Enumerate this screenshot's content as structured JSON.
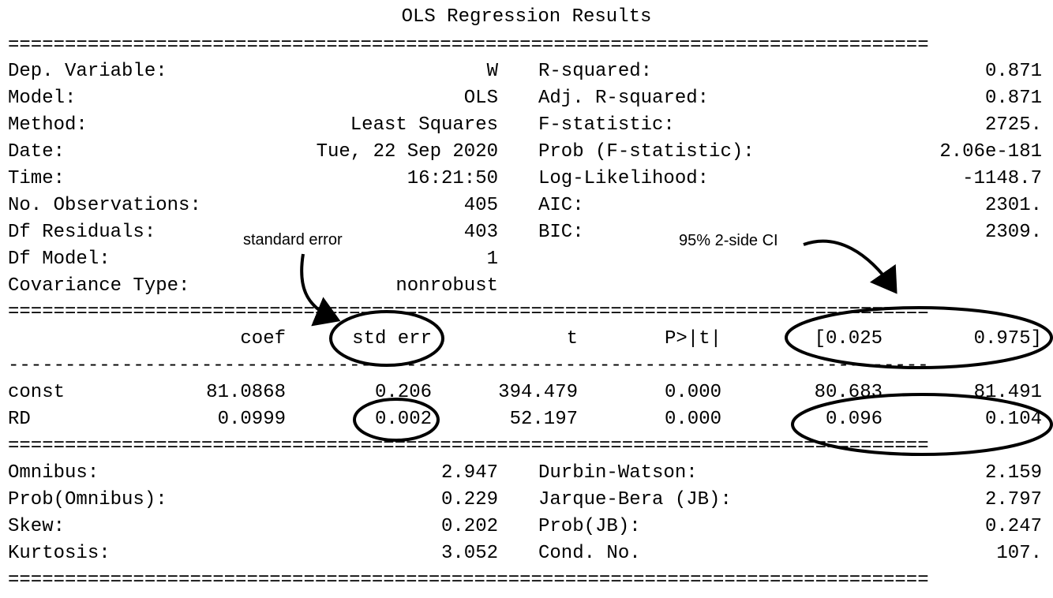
{
  "title": "OLS Regression Results",
  "rule_double": "=================================================================================",
  "rule_single": "---------------------------------------------------------------------------------",
  "top": {
    "left": [
      {
        "label": "Dep. Variable:",
        "value": "W"
      },
      {
        "label": "Model:",
        "value": "OLS"
      },
      {
        "label": "Method:",
        "value": "Least Squares"
      },
      {
        "label": "Date:",
        "value": "Tue, 22 Sep 2020"
      },
      {
        "label": "Time:",
        "value": "16:21:50"
      },
      {
        "label": "No. Observations:",
        "value": "405"
      },
      {
        "label": "Df Residuals:",
        "value": "403"
      },
      {
        "label": "Df Model:",
        "value": "1"
      },
      {
        "label": "Covariance Type:",
        "value": "nonrobust"
      }
    ],
    "right": [
      {
        "label": "R-squared:",
        "value": "0.871"
      },
      {
        "label": "Adj. R-squared:",
        "value": "0.871"
      },
      {
        "label": "F-statistic:",
        "value": "2725."
      },
      {
        "label": "Prob (F-statistic):",
        "value": "2.06e-181"
      },
      {
        "label": "Log-Likelihood:",
        "value": "-1148.7"
      },
      {
        "label": "AIC:",
        "value": "2301."
      },
      {
        "label": "BIC:",
        "value": "2309."
      }
    ]
  },
  "coef_table": {
    "headers": [
      "coef",
      "std err",
      "t",
      "P>|t|",
      "[0.025",
      "0.975]"
    ],
    "rows": [
      {
        "name": "const",
        "values": [
          "81.0868",
          "0.206",
          "394.479",
          "0.000",
          "80.683",
          "81.491"
        ]
      },
      {
        "name": "RD",
        "values": [
          "0.0999",
          "0.002",
          "52.197",
          "0.000",
          "0.096",
          "0.104"
        ]
      }
    ]
  },
  "bottom": {
    "left": [
      {
        "label": "Omnibus:",
        "value": "2.947"
      },
      {
        "label": "Prob(Omnibus):",
        "value": "0.229"
      },
      {
        "label": "Skew:",
        "value": "0.202"
      },
      {
        "label": "Kurtosis:",
        "value": "3.052"
      }
    ],
    "right": [
      {
        "label": "Durbin-Watson:",
        "value": "2.159"
      },
      {
        "label": "Jarque-Bera (JB):",
        "value": "2.797"
      },
      {
        "label": "Prob(JB):",
        "value": "0.247"
      },
      {
        "label": "Cond. No.",
        "value": "107."
      }
    ]
  },
  "annotations": {
    "std_err_note": "standard error",
    "ci_note": "95% 2-side CI"
  }
}
